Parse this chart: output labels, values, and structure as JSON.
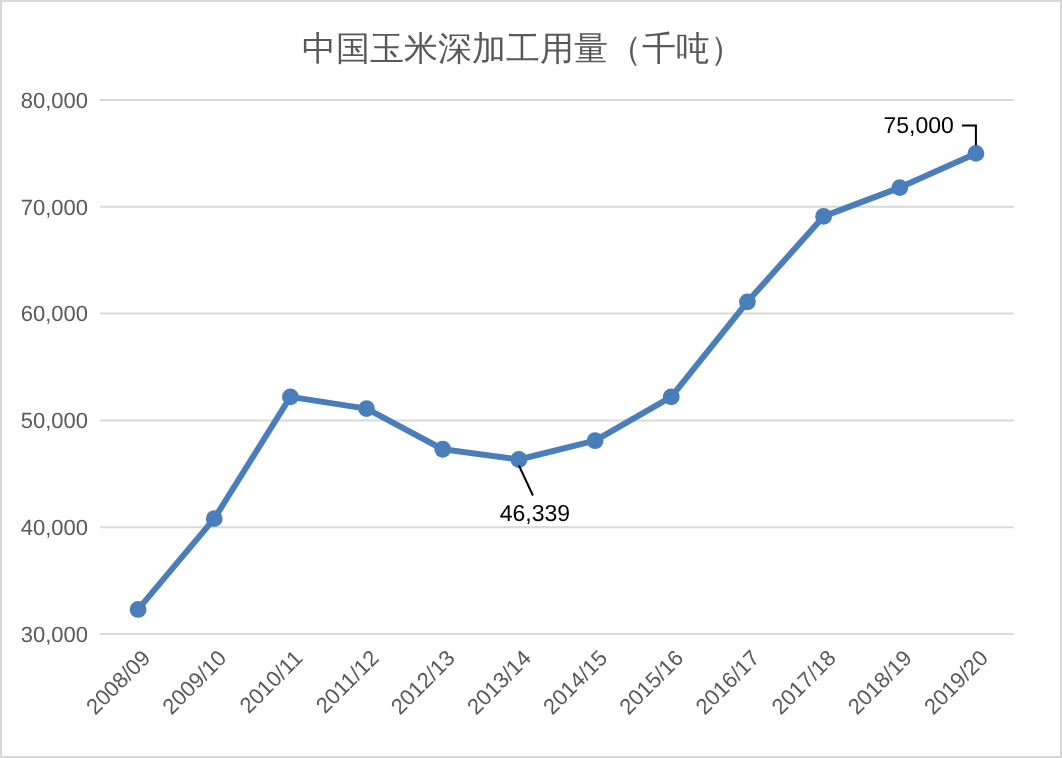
{
  "chart_data": {
    "type": "line",
    "title": "中国玉米深加工用量（千吨）",
    "categories": [
      "2008/09",
      "2009/10",
      "2010/11",
      "2011/12",
      "2012/13",
      "2013/14",
      "2014/15",
      "2015/16",
      "2016/17",
      "2017/18",
      "2018/19",
      "2019/20"
    ],
    "series": [
      {
        "color": "#4a7ebb",
        "values": [
          32300,
          40800,
          52200,
          51100,
          47300,
          46339,
          48100,
          52200,
          61100,
          69100,
          71800,
          75000
        ],
        "value_labels": [
          null,
          null,
          null,
          null,
          null,
          "46,339",
          null,
          null,
          null,
          null,
          null,
          "75,000"
        ]
      }
    ],
    "ylim": [
      30000,
      80000
    ],
    "yticks": [
      {
        "value": 30000,
        "label": "30,000"
      },
      {
        "value": 40000,
        "label": "40,000"
      },
      {
        "value": 50000,
        "label": "50,000"
      },
      {
        "value": 60000,
        "label": "60,000"
      },
      {
        "value": 70000,
        "label": "70,000"
      },
      {
        "value": 80000,
        "label": "80,000"
      }
    ],
    "grid": "y",
    "marker": "circle",
    "line_style": "solid"
  }
}
